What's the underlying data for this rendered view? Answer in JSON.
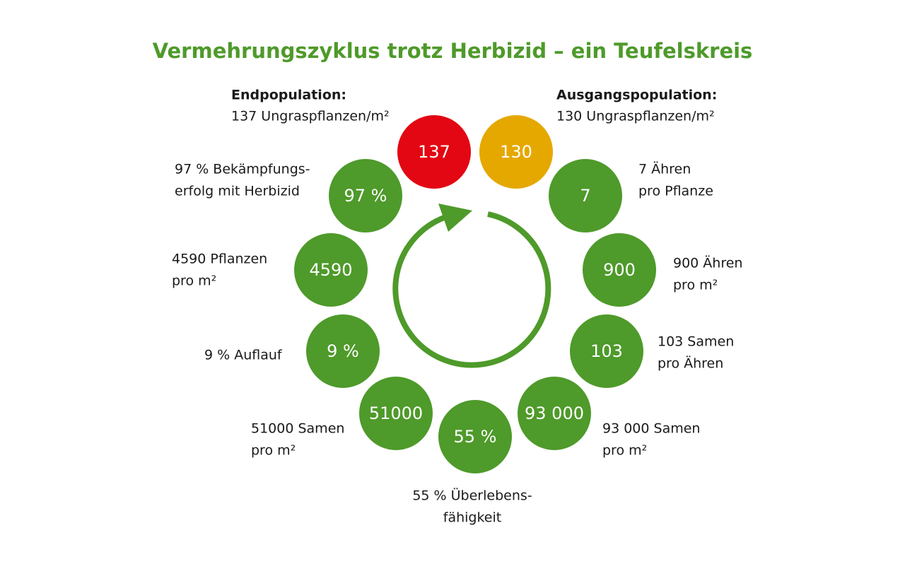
{
  "title": "Vermehrungszyklus trotz Herbizid – ein Teufelskreis",
  "nodes": [
    {
      "value": "137",
      "heading": "Endpopulation:",
      "caption": [
        "137 Ungraspflanzen/m²"
      ]
    },
    {
      "value": "130",
      "heading": "Ausgangspopulation:",
      "caption": [
        "130 Ungraspflanzen/m²"
      ]
    },
    {
      "value": "7",
      "caption": [
        "7 Ähren",
        "pro Pflanze"
      ]
    },
    {
      "value": "900",
      "caption": [
        "900 Ähren",
        "pro m²"
      ]
    },
    {
      "value": "103",
      "caption": [
        "103 Samen",
        "pro Ähren"
      ]
    },
    {
      "value": "93 000",
      "caption": [
        "93 000 Samen",
        "pro m²"
      ]
    },
    {
      "value": "55 %",
      "caption": [
        "55 % Überlebens-",
        "fähigkeit"
      ]
    },
    {
      "value": "51000",
      "caption": [
        "51000 Samen",
        "pro m²"
      ]
    },
    {
      "value": "9 %",
      "caption": [
        "9 % Auflauf"
      ]
    },
    {
      "value": "4590",
      "caption": [
        "4590 Pflanzen",
        "pro m²"
      ]
    },
    {
      "value": "97 %",
      "caption": [
        "97 % Bekämpfungs-",
        "erfolg mit Herbizid"
      ]
    }
  ]
}
